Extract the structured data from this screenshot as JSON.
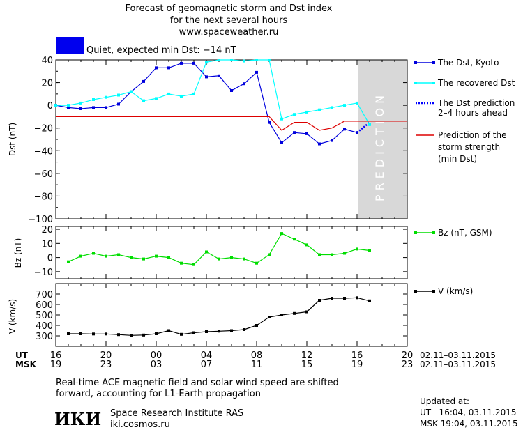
{
  "header": {
    "title_line1": "Forecast of geomagnetic storm and Dst index",
    "title_line2": "for the next several hours",
    "site": "www.spaceweather.ru",
    "status": "Quiet, expected min Dst: −14 nT",
    "status_color": "#0000ee"
  },
  "legend": {
    "dst_kyoto": "The Dst, Kyoto",
    "dst_recovered": "The recovered Dst",
    "dst_prediction_l1": "The Dst prediction",
    "dst_prediction_l2": "2–4 hours ahead",
    "storm_l1": "Prediction of the",
    "storm_l2": "storm strength",
    "storm_l3": "(min Dst)",
    "bz": "Bz (nT, GSM)",
    "v": "V (km/s)"
  },
  "prediction_label": "PREDICTION",
  "axes": {
    "dst_ylabel": "Dst (nT)",
    "bz_ylabel": "Bz (nT)",
    "v_ylabel": "V (km/s)",
    "ut_label": "UT",
    "msk_label": "MSK",
    "ut_ticks": [
      "16",
      "20",
      "00",
      "04",
      "08",
      "12",
      "16",
      "20"
    ],
    "msk_ticks": [
      "19",
      "23",
      "03",
      "07",
      "11",
      "15",
      "19",
      "23"
    ],
    "date_range_ut": "02.11–03.11.2015",
    "date_range_msk": "02.11–03.11.2015"
  },
  "footer": {
    "note_line1": "Real-time ACE magnetic field and solar wind speed are shifted",
    "note_line2": "forward, accounting for L1-Earth propagation",
    "logo": "ИКИ",
    "institute": "Space Research Institute RAS",
    "institute_site": "iki.cosmos.ru",
    "updated_label": "Updated at:",
    "updated_ut": "UT   16:04, 03.11.2015",
    "updated_msk": "MSK 19:04, 03.11.2015"
  },
  "chart_data": [
    {
      "type": "line",
      "panel": "dst",
      "x_unit": "hours since 16:00 UT 02.11.2015",
      "xlim": [
        0,
        28
      ],
      "ylim": [
        -100,
        40
      ],
      "yticks": [
        40,
        20,
        0,
        -20,
        -40,
        -60,
        -80,
        -100
      ],
      "prediction_region": [
        24,
        28
      ],
      "series": [
        {
          "name": "The Dst, Kyoto",
          "color": "#0000dd",
          "x": [
            0,
            1,
            2,
            3,
            4,
            5,
            6,
            7,
            8,
            9,
            10,
            11,
            12,
            13,
            14,
            15,
            16,
            17,
            18,
            19,
            20,
            21,
            22,
            23,
            24
          ],
          "y": [
            0,
            -2,
            -3,
            -2,
            -2,
            1,
            12,
            21,
            33,
            33,
            37,
            37,
            25,
            26,
            13,
            19,
            29,
            -15,
            -33,
            -24,
            -25,
            -34,
            -31,
            -21,
            -24
          ]
        },
        {
          "name": "The recovered Dst",
          "color": "#00ffff",
          "x": [
            0,
            1,
            2,
            3,
            4,
            5,
            6,
            7,
            8,
            9,
            10,
            11,
            12,
            13,
            14,
            15,
            16,
            17,
            18,
            19,
            20,
            21,
            22,
            23,
            24,
            25
          ],
          "y": [
            0,
            0,
            2,
            5,
            7,
            9,
            12,
            4,
            6,
            10,
            8,
            10,
            38,
            40,
            40,
            39,
            40,
            40,
            -12,
            -8,
            -6,
            -4,
            -2,
            0,
            2,
            -17
          ]
        },
        {
          "name": "The Dst prediction 2–4 hours ahead",
          "color": "#0000ff",
          "x": [
            24,
            25
          ],
          "y": [
            -24,
            -15
          ]
        },
        {
          "name": "Prediction of the storm strength (min Dst)",
          "color": "#dd0000",
          "x": [
            0,
            17,
            18,
            19,
            20,
            21,
            22,
            23,
            24,
            28
          ],
          "y": [
            -10,
            -10,
            -22,
            -15,
            -15,
            -22,
            -20,
            -14,
            -14,
            -14
          ]
        }
      ]
    },
    {
      "type": "line",
      "panel": "bz",
      "xlim": [
        0,
        28
      ],
      "ylim": [
        -15,
        22
      ],
      "yticks": [
        20,
        10,
        0,
        -10
      ],
      "series": [
        {
          "name": "Bz (nT, GSM)",
          "color": "#00dd00",
          "x": [
            1,
            2,
            3,
            4,
            5,
            6,
            7,
            8,
            9,
            10,
            11,
            12,
            13,
            14,
            15,
            16,
            17,
            18,
            19,
            20,
            21,
            22,
            23,
            24,
            25
          ],
          "y": [
            -3,
            1,
            3,
            1,
            2,
            0,
            -1,
            1,
            0,
            -4,
            -5,
            4,
            -1,
            0,
            -1,
            -4,
            2,
            17,
            13,
            9,
            2,
            2,
            3,
            6,
            5
          ]
        }
      ]
    },
    {
      "type": "line",
      "panel": "v",
      "xlim": [
        0,
        28
      ],
      "ylim": [
        200,
        800
      ],
      "yticks": [
        700,
        600,
        500,
        400,
        300
      ],
      "series": [
        {
          "name": "V (km/s)",
          "color": "#000000",
          "x": [
            1,
            2,
            3,
            4,
            5,
            6,
            7,
            8,
            9,
            10,
            11,
            12,
            13,
            14,
            15,
            16,
            17,
            18,
            19,
            20,
            21,
            22,
            23,
            24,
            25
          ],
          "y": [
            320,
            320,
            318,
            318,
            312,
            305,
            308,
            320,
            350,
            315,
            330,
            340,
            345,
            350,
            360,
            400,
            480,
            500,
            515,
            530,
            640,
            660,
            660,
            665,
            635
          ]
        }
      ]
    }
  ]
}
